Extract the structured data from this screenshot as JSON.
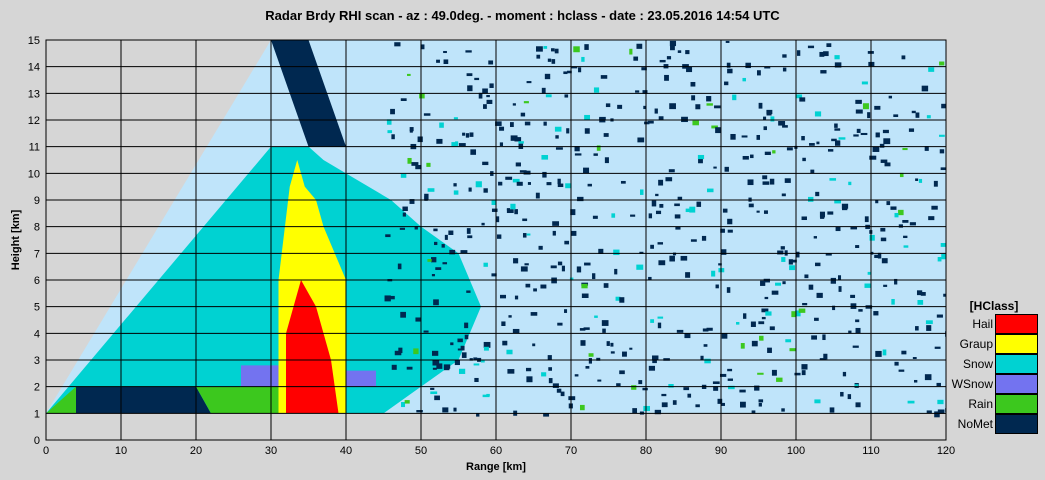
{
  "chart_data": {
    "type": "heatmap",
    "title": "Radar Brdy RHI scan  -  az : 49.0deg.  -  moment : hclass  -  date : 23.05.2016  14:54 UTC",
    "xlabel": "Range [km]",
    "ylabel": "Height [km]",
    "xlim": [
      0,
      120
    ],
    "ylim": [
      0,
      15
    ],
    "x_ticks": [
      0,
      10,
      20,
      30,
      40,
      50,
      60,
      70,
      80,
      90,
      100,
      110,
      120
    ],
    "y_ticks": [
      0,
      1,
      2,
      3,
      4,
      5,
      6,
      7,
      8,
      9,
      10,
      11,
      12,
      13,
      14,
      15
    ],
    "grid": true,
    "legend_title": "[HClass]",
    "legend_placement": "right",
    "classes": [
      {
        "name": "Hail",
        "color": "#ff0000"
      },
      {
        "name": "Graup",
        "color": "#ffff00"
      },
      {
        "name": "Snow",
        "color": "#00d2d2"
      },
      {
        "name": "WSnow",
        "color": "#7373f0"
      },
      {
        "name": "Rain",
        "color": "#3cc81e"
      },
      {
        "name": "NoMet",
        "color": "#002850"
      }
    ],
    "background_color": "#bfe4fa",
    "no_data_color": "#d6d6d6",
    "regions": [
      {
        "class": "Snow",
        "polygon": [
          [
            0,
            1
          ],
          [
            30,
            11
          ],
          [
            35,
            11
          ],
          [
            37,
            10.5
          ],
          [
            40,
            10
          ],
          [
            46,
            9
          ],
          [
            50,
            8
          ],
          [
            55,
            7
          ],
          [
            58,
            5
          ],
          [
            55,
            3
          ],
          [
            50,
            2
          ],
          [
            45,
            1
          ],
          [
            0,
            1
          ]
        ]
      },
      {
        "class": "NoMet",
        "polygon": [
          [
            4,
            1
          ],
          [
            4,
            2
          ],
          [
            20,
            2
          ],
          [
            22,
            1
          ]
        ]
      },
      {
        "class": "Rain",
        "polygon": [
          [
            0,
            1
          ],
          [
            4,
            2
          ],
          [
            4,
            1
          ]
        ]
      },
      {
        "class": "Rain",
        "polygon": [
          [
            22,
            1
          ],
          [
            20,
            2
          ],
          [
            32,
            2
          ],
          [
            32,
            1
          ]
        ]
      },
      {
        "class": "WSnow",
        "polygon": [
          [
            26,
            2
          ],
          [
            26,
            2.8
          ],
          [
            31,
            2.8
          ],
          [
            31,
            2
          ]
        ]
      },
      {
        "class": "WSnow",
        "polygon": [
          [
            40,
            2
          ],
          [
            40,
            2.6
          ],
          [
            44,
            2.6
          ],
          [
            44,
            2
          ]
        ]
      },
      {
        "class": "Graup",
        "polygon": [
          [
            31,
            1
          ],
          [
            31,
            6
          ],
          [
            32.5,
            9.5
          ],
          [
            33.5,
            10.5
          ],
          [
            34.5,
            9.5
          ],
          [
            36,
            9
          ],
          [
            37,
            8
          ],
          [
            40,
            6
          ],
          [
            40,
            1
          ]
        ]
      },
      {
        "class": "Hail",
        "polygon": [
          [
            32,
            1
          ],
          [
            32,
            4
          ],
          [
            34,
            6
          ],
          [
            36,
            5
          ],
          [
            38,
            3
          ],
          [
            39,
            1
          ]
        ]
      },
      {
        "class": "NoMet",
        "polygon": [
          [
            35,
            11
          ],
          [
            40,
            11
          ],
          [
            35,
            15
          ],
          [
            30,
            15
          ]
        ]
      }
    ]
  }
}
